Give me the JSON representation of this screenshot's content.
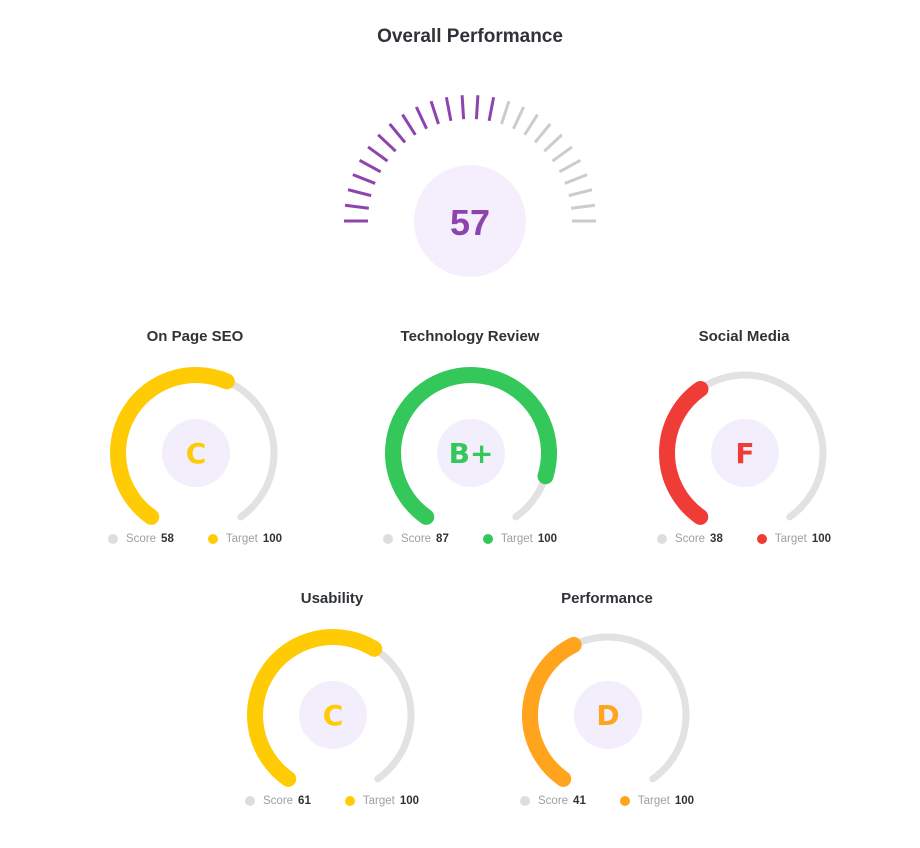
{
  "title": "Overall Performance",
  "chart_data": {
    "type": "gauge",
    "overall": {
      "value": 57,
      "max": 100,
      "color": "#8e44ad",
      "track": "#cccccc",
      "center_bg": "#f5eefc"
    },
    "gauges": [
      {
        "name": "On Page SEO",
        "grade": "C",
        "score": 58,
        "target": 100,
        "color": "#ffcb05"
      },
      {
        "name": "Technology Review",
        "grade": "B+",
        "score": 87,
        "target": 100,
        "color": "#34c759"
      },
      {
        "name": "Social Media",
        "grade": "F",
        "score": 38,
        "target": 100,
        "color": "#f03c36"
      },
      {
        "name": "Usability",
        "grade": "C",
        "score": 61,
        "target": 100,
        "color": "#ffcb05"
      },
      {
        "name": "Performance",
        "grade": "D",
        "score": 41,
        "target": 100,
        "color": "#ffa41c"
      }
    ],
    "legend": {
      "score_label": "Score",
      "target_label": "Target",
      "score_dot_color": "#dddddd"
    }
  }
}
